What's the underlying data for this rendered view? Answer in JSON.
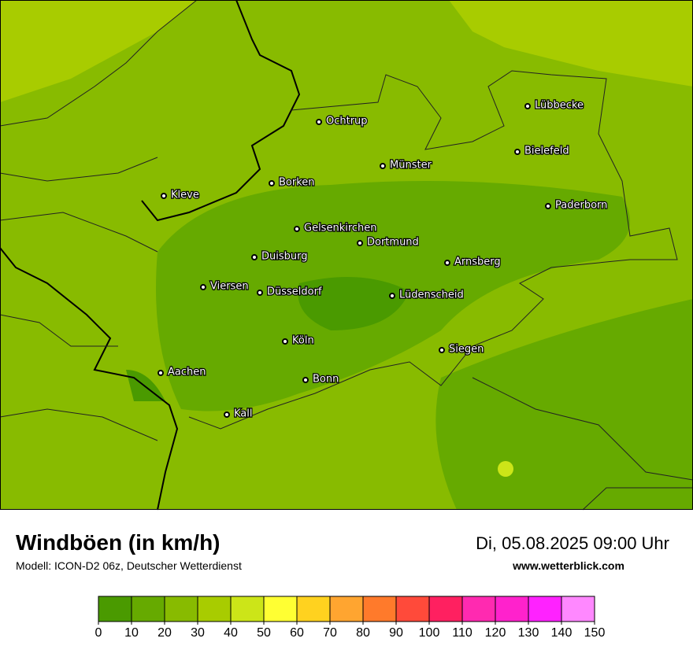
{
  "map": {
    "cities": [
      "Lübbecke",
      "Ochtrup",
      "Bielefeld",
      "Münster",
      "Borken",
      "Kleve",
      "Paderborn",
      "Gelsenkirchen",
      "Dortmund",
      "Duisburg",
      "Arnsberg",
      "Viersen",
      "Düsseldorf",
      "Lüdenscheid",
      "Köln",
      "Siegen",
      "Aachen",
      "Bonn",
      "Kall"
    ]
  },
  "footer": {
    "title": "Windböen (in km/h)",
    "model": "Modell: ICON-D2 06z, Deutscher Wetterdienst",
    "datetime": "Di, 05.08.2025 09:00 Uhr",
    "website": "www.wetterblick.com"
  },
  "legend": {
    "ticks": [
      0,
      10,
      20,
      30,
      40,
      50,
      60,
      70,
      80,
      90,
      100,
      110,
      120,
      130,
      140,
      150
    ],
    "colors": [
      "#4a9a00",
      "#66aa00",
      "#88bb00",
      "#a8cc00",
      "#cce518",
      "#ffff33",
      "#ffd21f",
      "#ffa530",
      "#ff7a2b",
      "#ff4a3a",
      "#ff2060",
      "#ff2ab0",
      "#ff22cc",
      "#ff22ff",
      "#ff88ff"
    ]
  }
}
